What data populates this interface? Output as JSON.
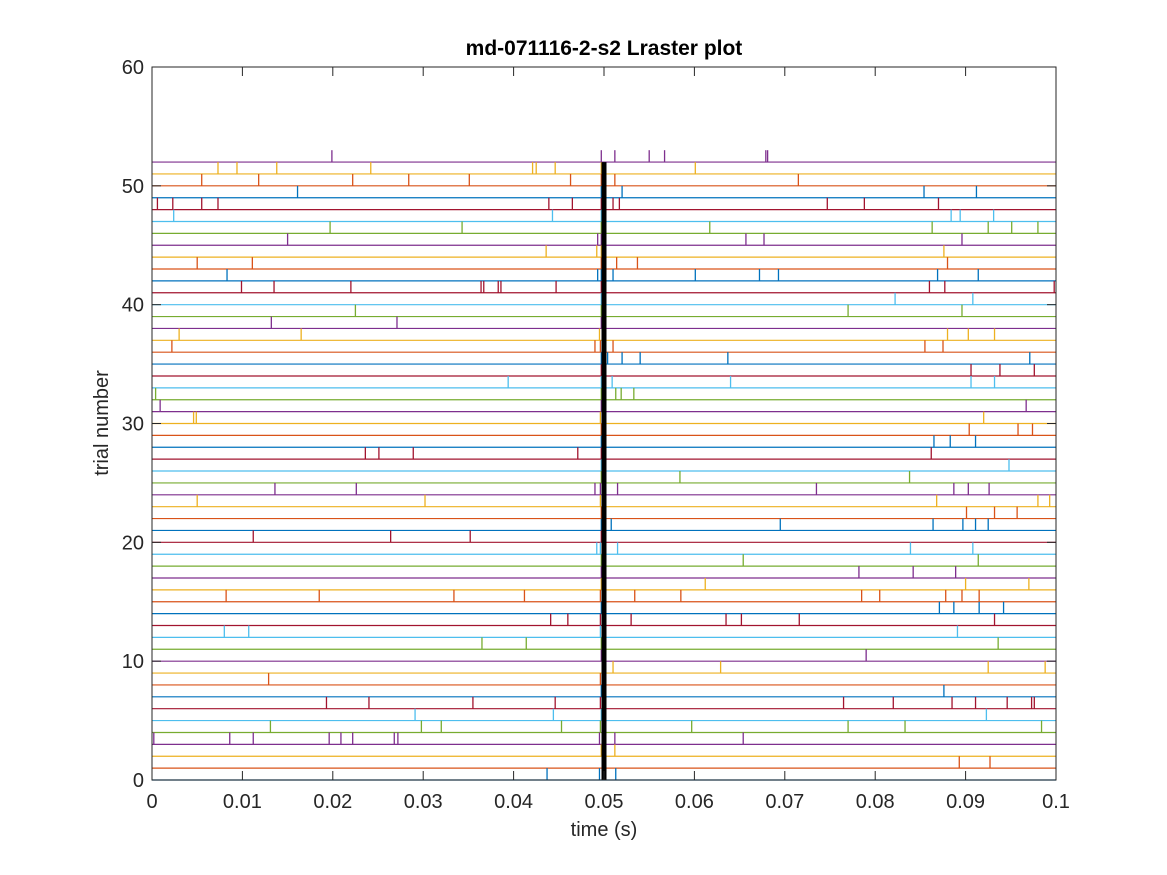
{
  "chart_data": {
    "type": "raster",
    "title": "md-071116-2-s2 Lraster plot",
    "xlabel": "time (s)",
    "ylabel": "trial number",
    "xlim": [
      0,
      0.1
    ],
    "ylim": [
      0,
      60
    ],
    "xticks": [
      0,
      0.01,
      0.02,
      0.03,
      0.04,
      0.05,
      0.06,
      0.07,
      0.08,
      0.09,
      0.1
    ],
    "xtick_labels": [
      "0",
      "0.01",
      "0.02",
      "0.03",
      "0.04",
      "0.05",
      "0.06",
      "0.07",
      "0.08",
      "0.09",
      "0.1"
    ],
    "yticks": [
      0,
      10,
      20,
      30,
      40,
      50,
      60
    ],
    "ytick_labels": [
      "0",
      "10",
      "20",
      "30",
      "40",
      "50",
      "60"
    ],
    "grid": false,
    "legend": "none",
    "event_marker": {
      "x": 0.05,
      "ymin": 0,
      "ymax": 52,
      "color": "#000000"
    },
    "colors": [
      "#0072BD",
      "#D95319",
      "#EDB120",
      "#7E2F8E",
      "#77AC30",
      "#4DBEEE",
      "#A2142F"
    ],
    "trials": [
      {
        "y": 0,
        "spikes": [
          0.0437,
          0.0495,
          0.0498,
          0.0513
        ]
      },
      {
        "y": 1,
        "spikes": [
          0.0498,
          0.0893,
          0.0927
        ]
      },
      {
        "y": 2,
        "spikes": [
          0.0497,
          0.0512
        ]
      },
      {
        "y": 3,
        "spikes": [
          0.0002,
          0.0086,
          0.0112,
          0.0196,
          0.0209,
          0.0222,
          0.0268,
          0.0272,
          0.0495,
          0.0512,
          0.0654
        ]
      },
      {
        "y": 4,
        "spikes": [
          0.0131,
          0.0298,
          0.032,
          0.0453,
          0.0496,
          0.0597,
          0.077,
          0.0833,
          0.0984
        ]
      },
      {
        "y": 5,
        "spikes": [
          0.0291,
          0.0444,
          0.0497,
          0.0923
        ]
      },
      {
        "y": 6,
        "spikes": [
          0.0193,
          0.024,
          0.0355,
          0.0446,
          0.0496,
          0.0765,
          0.082,
          0.0885,
          0.0911,
          0.0946,
          0.0973,
          0.0976
        ]
      },
      {
        "y": 7,
        "spikes": [
          0.0497,
          0.0876
        ]
      },
      {
        "y": 8,
        "spikes": [
          0.0129,
          0.0496
        ]
      },
      {
        "y": 9,
        "spikes": [
          0.0498,
          0.051,
          0.0629,
          0.0925,
          0.0988
        ]
      },
      {
        "y": 10,
        "spikes": [
          0.0497,
          0.079
        ]
      },
      {
        "y": 11,
        "spikes": [
          0.0365,
          0.0414,
          0.0497,
          0.0936
        ]
      },
      {
        "y": 12,
        "spikes": [
          0.008,
          0.0107,
          0.0496,
          0.0891
        ]
      },
      {
        "y": 13,
        "spikes": [
          0.0441,
          0.046,
          0.0496,
          0.053,
          0.0635,
          0.0652,
          0.0716,
          0.0932
        ]
      },
      {
        "y": 14,
        "spikes": [
          0.0497,
          0.0871,
          0.0887,
          0.0915,
          0.0942
        ]
      },
      {
        "y": 15,
        "spikes": [
          0.0082,
          0.0185,
          0.0334,
          0.0412,
          0.0496,
          0.0534,
          0.0585,
          0.0785,
          0.0805,
          0.0878,
          0.0896,
          0.0915
        ]
      },
      {
        "y": 16,
        "spikes": [
          0.0497,
          0.0612,
          0.09,
          0.097
        ]
      },
      {
        "y": 17,
        "spikes": [
          0.0497,
          0.0782,
          0.0842,
          0.0889
        ]
      },
      {
        "y": 18,
        "spikes": [
          0.0497,
          0.0654,
          0.0914
        ]
      },
      {
        "y": 19,
        "spikes": [
          0.0492,
          0.0496,
          0.0499,
          0.0515,
          0.0839,
          0.0908
        ]
      },
      {
        "y": 20,
        "spikes": [
          0.0112,
          0.0264,
          0.0352,
          0.0497
        ]
      },
      {
        "y": 21,
        "spikes": [
          0.0497,
          0.0508,
          0.0695,
          0.0864,
          0.0897,
          0.0911,
          0.0925
        ]
      },
      {
        "y": 22,
        "spikes": [
          0.0497,
          0.0901,
          0.0932,
          0.0957
        ]
      },
      {
        "y": 23,
        "spikes": [
          0.005,
          0.0302,
          0.0496,
          0.0868,
          0.098,
          0.0993
        ]
      },
      {
        "y": 24,
        "spikes": [
          0.0136,
          0.0226,
          0.049,
          0.0496,
          0.0515,
          0.0735,
          0.0887,
          0.0903,
          0.0926
        ]
      },
      {
        "y": 25,
        "spikes": [
          0.0497,
          0.0584,
          0.0838
        ]
      },
      {
        "y": 26,
        "spikes": [
          0.0497,
          0.0948
        ]
      },
      {
        "y": 27,
        "spikes": [
          0.0236,
          0.0251,
          0.0289,
          0.0471,
          0.0497,
          0.0862
        ]
      },
      {
        "y": 28,
        "spikes": [
          0.0497,
          0.0865,
          0.0883,
          0.0911
        ]
      },
      {
        "y": 29,
        "spikes": [
          0.0497,
          0.0904,
          0.0958,
          0.0974
        ]
      },
      {
        "y": 30,
        "spikes": [
          0.0046,
          0.0049,
          0.0496,
          0.092
        ]
      },
      {
        "y": 31,
        "spikes": [
          0.0009,
          0.0497,
          0.0967
        ]
      },
      {
        "y": 32,
        "spikes": [
          0.0004,
          0.0497,
          0.0513,
          0.0519,
          0.0533
        ]
      },
      {
        "y": 33,
        "spikes": [
          0.0394,
          0.0497,
          0.0509,
          0.064,
          0.0906,
          0.0932
        ]
      },
      {
        "y": 34,
        "spikes": [
          0.0497,
          0.0906,
          0.0938,
          0.0976
        ]
      },
      {
        "y": 35,
        "spikes": [
          0.0497,
          0.0504,
          0.052,
          0.054,
          0.0637,
          0.0971
        ]
      },
      {
        "y": 36,
        "spikes": [
          0.0022,
          0.049,
          0.0496,
          0.051,
          0.0855,
          0.0875
        ]
      },
      {
        "y": 37,
        "spikes": [
          0.003,
          0.0165,
          0.0495,
          0.088,
          0.0903,
          0.0932
        ]
      },
      {
        "y": 38,
        "spikes": [
          0.0132,
          0.0271,
          0.0497
        ]
      },
      {
        "y": 39,
        "spikes": [
          0.0225,
          0.0497,
          0.077,
          0.0896
        ]
      },
      {
        "y": 40,
        "spikes": [
          0.0497,
          0.0822,
          0.0908
        ]
      },
      {
        "y": 41,
        "spikes": [
          0.0099,
          0.0135,
          0.022,
          0.0364,
          0.0367,
          0.0383,
          0.0386,
          0.0447,
          0.0497,
          0.086,
          0.0877,
          0.0998
        ]
      },
      {
        "y": 42,
        "spikes": [
          0.0083,
          0.0493,
          0.0497,
          0.051,
          0.0601,
          0.0672,
          0.0693,
          0.0869,
          0.0914
        ]
      },
      {
        "y": 43,
        "spikes": [
          0.005,
          0.0111,
          0.0497,
          0.0514,
          0.0537,
          0.088
        ]
      },
      {
        "y": 44,
        "spikes": [
          0.0436,
          0.0492,
          0.0497,
          0.0876
        ]
      },
      {
        "y": 45,
        "spikes": [
          0.015,
          0.0493,
          0.0497,
          0.0657,
          0.0677,
          0.0896
        ]
      },
      {
        "y": 46,
        "spikes": [
          0.0197,
          0.0343,
          0.0497,
          0.0617,
          0.0863,
          0.0925,
          0.0951,
          0.098
        ]
      },
      {
        "y": 47,
        "spikes": [
          0.0024,
          0.0443,
          0.0497,
          0.0884,
          0.0894,
          0.0931
        ]
      },
      {
        "y": 48,
        "spikes": [
          0.0006,
          0.0023,
          0.0055,
          0.0073,
          0.0439,
          0.0465,
          0.0497,
          0.051,
          0.0517,
          0.0747,
          0.0788,
          0.087
        ]
      },
      {
        "y": 49,
        "spikes": [
          0.0161,
          0.0497,
          0.052,
          0.0854,
          0.0912
        ]
      },
      {
        "y": 50,
        "spikes": [
          0.0055,
          0.0118,
          0.0222,
          0.0284,
          0.0351,
          0.0463,
          0.0497,
          0.0512,
          0.0715
        ]
      },
      {
        "y": 51,
        "spikes": [
          0.0073,
          0.0094,
          0.0138,
          0.0242,
          0.0421,
          0.0425,
          0.0446,
          0.0497,
          0.0601
        ]
      },
      {
        "y": 52,
        "spikes": [
          0.0199,
          0.0497,
          0.0512,
          0.055,
          0.0567,
          0.0679,
          0.0681
        ]
      }
    ]
  }
}
